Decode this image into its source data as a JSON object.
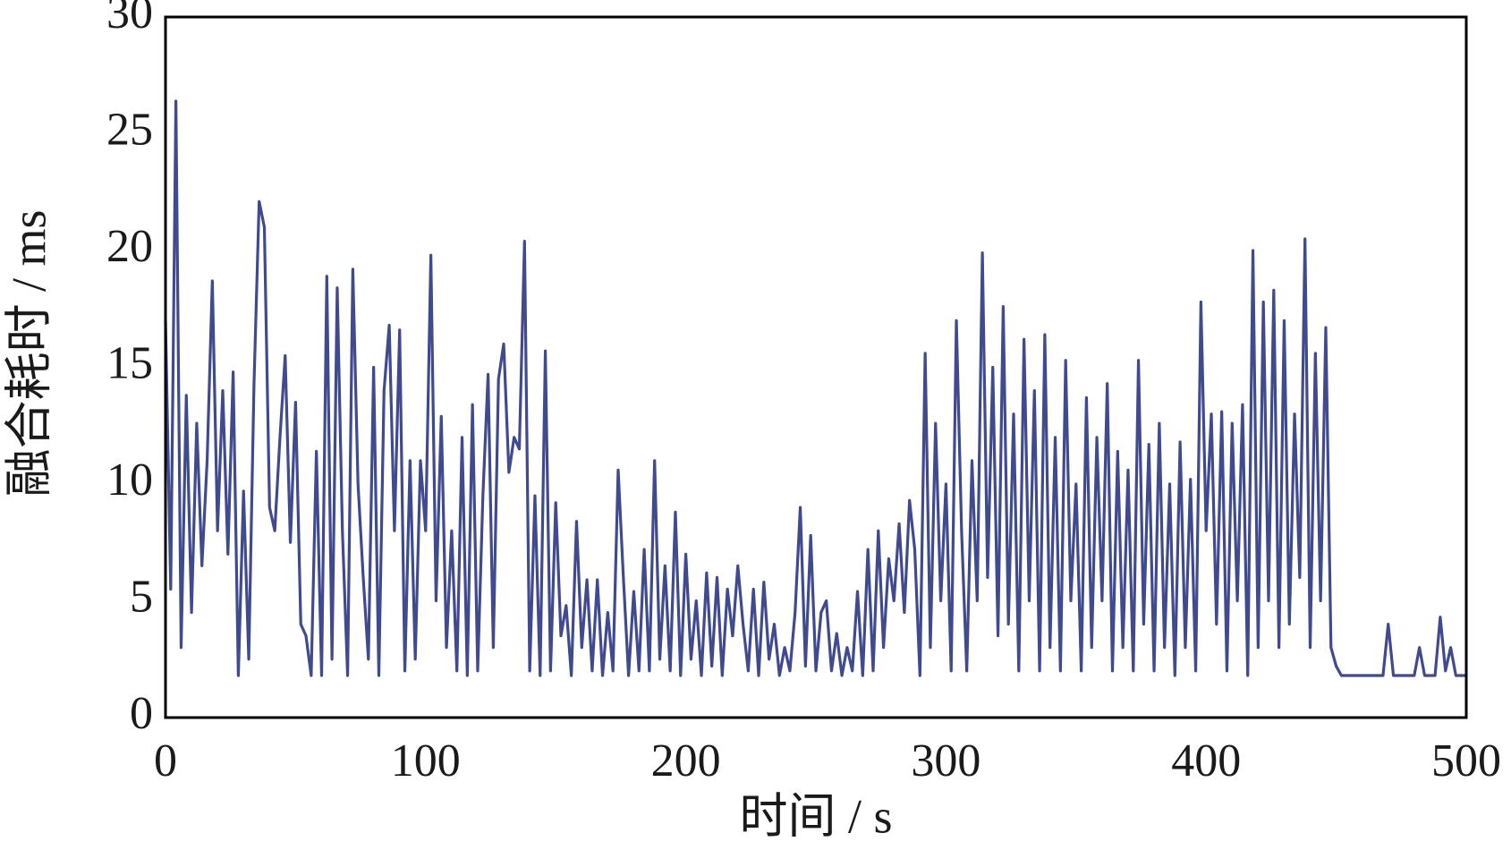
{
  "chart_data": {
    "type": "line",
    "xlabel": "时间 / s",
    "ylabel": "融合耗时 / ms",
    "xlim": [
      0,
      500
    ],
    "xticks": [
      0,
      100,
      200,
      300,
      400,
      500
    ],
    "ylim": [
      0,
      30
    ],
    "yticks": [
      0,
      5,
      10,
      15,
      20,
      25,
      30
    ],
    "grid": false,
    "x": [
      0,
      2,
      4,
      6,
      8,
      10,
      12,
      14,
      16,
      18,
      20,
      22,
      24,
      26,
      28,
      30,
      32,
      34,
      36,
      38,
      40,
      42,
      44,
      46,
      48,
      50,
      52,
      54,
      56,
      58,
      60,
      62,
      64,
      66,
      68,
      70,
      72,
      74,
      76,
      78,
      80,
      82,
      84,
      86,
      88,
      90,
      92,
      94,
      96,
      98,
      100,
      102,
      104,
      106,
      108,
      110,
      112,
      114,
      116,
      118,
      120,
      122,
      124,
      126,
      128,
      130,
      132,
      134,
      136,
      138,
      140,
      142,
      144,
      146,
      148,
      150,
      152,
      154,
      156,
      158,
      160,
      162,
      164,
      166,
      168,
      170,
      172,
      174,
      176,
      178,
      180,
      182,
      184,
      186,
      188,
      190,
      192,
      194,
      196,
      198,
      200,
      202,
      204,
      206,
      208,
      210,
      212,
      214,
      216,
      218,
      220,
      222,
      224,
      226,
      228,
      230,
      232,
      234,
      236,
      238,
      240,
      242,
      244,
      246,
      248,
      250,
      252,
      254,
      256,
      258,
      260,
      262,
      264,
      266,
      268,
      270,
      272,
      274,
      276,
      278,
      280,
      282,
      284,
      286,
      288,
      290,
      292,
      294,
      296,
      298,
      300,
      302,
      304,
      306,
      308,
      310,
      312,
      314,
      316,
      318,
      320,
      322,
      324,
      326,
      328,
      330,
      332,
      334,
      336,
      338,
      340,
      342,
      344,
      346,
      348,
      350,
      352,
      354,
      356,
      358,
      360,
      362,
      364,
      366,
      368,
      370,
      372,
      374,
      376,
      378,
      380,
      382,
      384,
      386,
      388,
      390,
      392,
      394,
      396,
      398,
      400,
      402,
      404,
      406,
      408,
      410,
      412,
      414,
      416,
      418,
      420,
      422,
      424,
      426,
      428,
      430,
      432,
      434,
      436,
      438,
      440,
      442,
      444,
      446,
      448,
      450,
      452,
      454,
      456,
      458,
      460,
      462,
      464,
      466,
      468,
      470,
      472,
      474,
      476,
      478,
      480,
      482,
      484,
      486,
      488,
      490,
      492,
      494,
      496,
      498,
      500
    ],
    "series": [
      {
        "color": "#3f4a8f",
        "values": [
          17,
          5.5,
          26.4,
          3,
          13.8,
          4.5,
          12.6,
          6.5,
          11,
          18.7,
          8,
          14,
          7,
          14.8,
          1.8,
          9.7,
          2.5,
          14.2,
          22.1,
          21,
          9,
          8,
          12,
          15.5,
          7.5,
          13.5,
          4,
          3.5,
          1.8,
          11.4,
          1.8,
          18.9,
          2.5,
          18.4,
          8,
          1.8,
          19.2,
          10,
          6,
          2.5,
          15,
          1.8,
          14,
          16.8,
          8,
          16.6,
          2,
          11,
          2.5,
          11,
          8,
          19.8,
          5,
          12.9,
          3,
          8,
          2,
          12,
          1.8,
          13.4,
          2,
          9.5,
          14.7,
          3,
          14.5,
          16,
          10.5,
          12,
          11.5,
          20.4,
          2,
          9.5,
          1.8,
          15.7,
          2,
          9.2,
          3.5,
          4.8,
          1.8,
          8.4,
          3,
          5.9,
          2,
          5.9,
          1.8,
          4.5,
          2,
          10.6,
          6,
          1.8,
          5.4,
          2,
          7.2,
          2,
          11,
          2.5,
          6.5,
          2,
          8.8,
          1.8,
          7,
          2.5,
          5,
          1.8,
          6.2,
          2.2,
          6,
          1.8,
          5.5,
          3.5,
          6.5,
          4,
          2,
          5.5,
          1.8,
          5.8,
          2.5,
          4,
          1.8,
          3,
          2,
          4.5,
          9,
          2.2,
          7.8,
          2,
          4.5,
          5,
          2,
          3.6,
          1.8,
          3,
          2,
          5.4,
          1.8,
          7.2,
          2,
          8,
          3,
          6.8,
          5,
          8.3,
          4.5,
          9.3,
          7.2,
          1.8,
          15.6,
          3,
          12.6,
          5,
          10,
          2,
          17,
          8,
          2,
          11,
          5,
          19.9,
          6,
          15,
          3.5,
          17.6,
          4,
          13,
          2,
          16.2,
          5,
          14,
          2,
          16.4,
          3,
          12,
          2,
          15.3,
          5,
          10,
          2,
          13.7,
          3,
          12,
          5,
          14.3,
          2,
          11.4,
          3,
          10.6,
          2,
          15.3,
          4,
          11.7,
          2,
          12.6,
          3,
          10,
          1.8,
          11.8,
          3,
          10.2,
          2,
          17.8,
          8,
          13,
          4,
          13.1,
          2,
          12.6,
          5,
          13.4,
          1.8,
          20,
          3,
          17.8,
          5,
          18.3,
          3,
          17,
          4,
          13,
          6,
          20.5,
          3,
          15.6,
          5,
          16.7,
          3,
          2.2,
          1.8,
          1.8,
          1.8,
          1.8,
          1.8,
          1.8,
          1.8,
          1.8,
          1.8,
          4,
          1.8,
          1.8,
          1.8,
          1.8,
          1.8,
          3,
          1.8,
          1.8,
          1.8,
          4.3,
          2,
          3,
          1.8,
          1.8,
          1.8
        ]
      }
    ]
  }
}
